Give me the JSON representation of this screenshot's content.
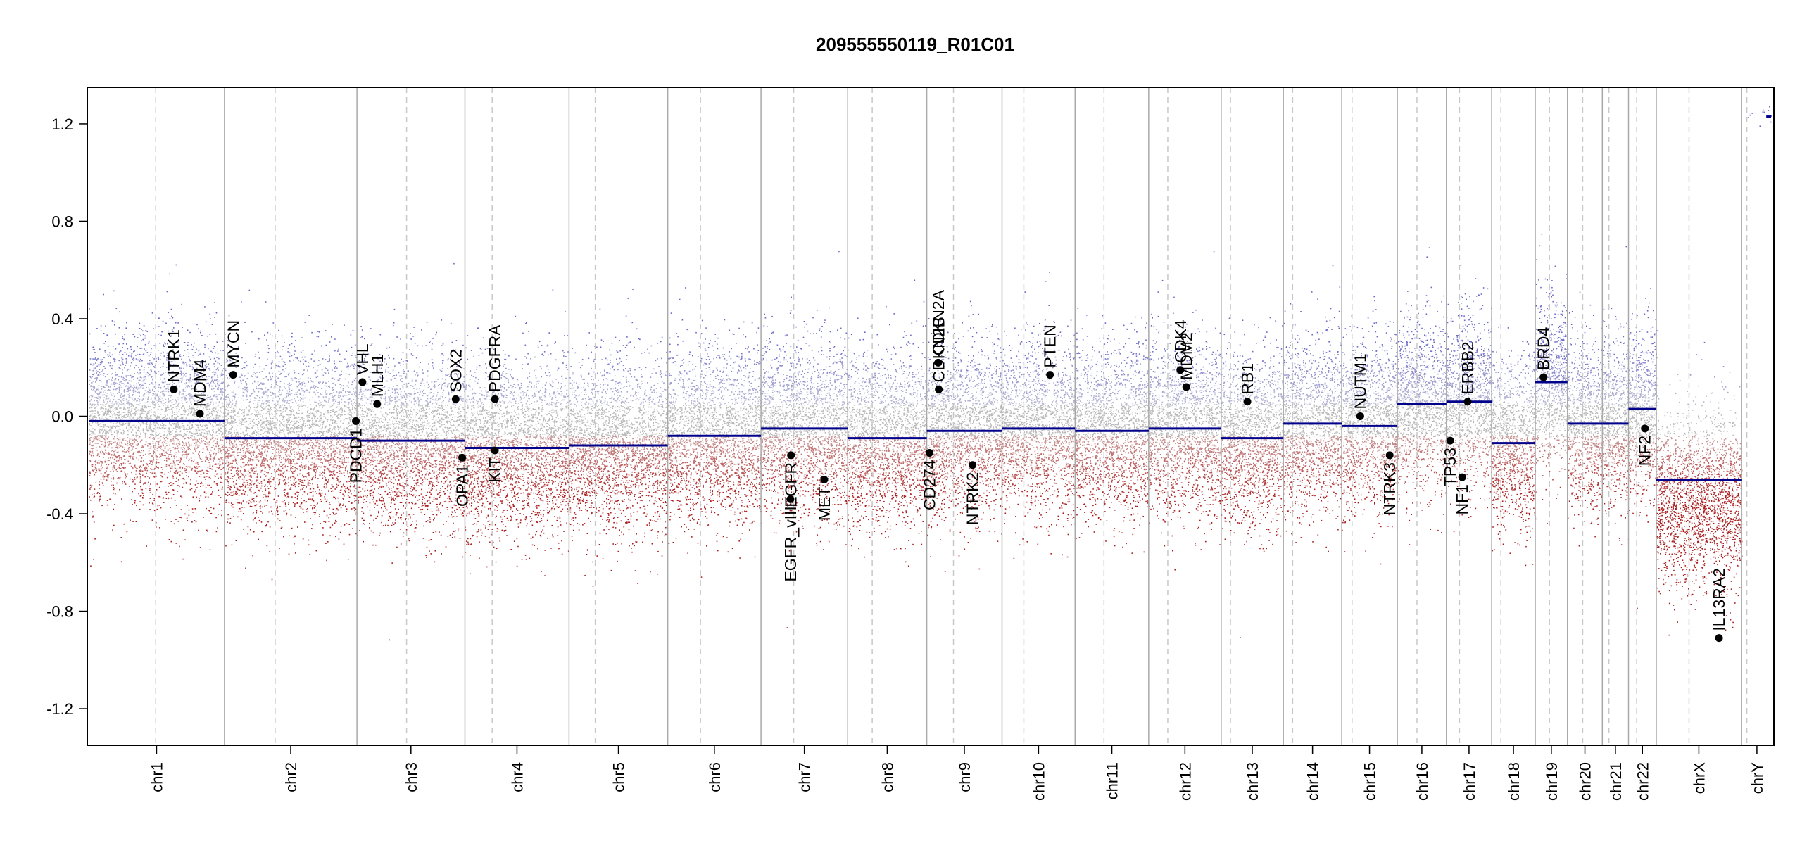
{
  "chart_data": {
    "type": "scatter",
    "title": "209555550119_R01C01",
    "xlabel": "",
    "ylabel": "",
    "ylim": [
      -1.35,
      1.35
    ],
    "y_ticks": [
      "-1.2",
      "-0.8",
      "-0.4",
      "0.0",
      "0.4",
      "0.8",
      "1.2"
    ],
    "y_tick_values": [
      -1.2,
      -0.8,
      -0.4,
      0.0,
      0.4,
      0.8,
      1.2
    ],
    "grid": false,
    "colors": {
      "segment": "#00008b",
      "gain_points": "#6a6ac8",
      "loss_points": "#b22222",
      "neutral_points": "#b8b8b8",
      "chrom_boundary": "#a9a9a9",
      "centromere": "#c8c8c8"
    },
    "chromosomes": [
      {
        "name": "chr1",
        "length": 249,
        "centromere": 123,
        "segment": -0.02
      },
      {
        "name": "chr2",
        "length": 243,
        "centromere": 93,
        "segment": -0.09
      },
      {
        "name": "chr3",
        "length": 198,
        "centromere": 91,
        "segment": -0.1
      },
      {
        "name": "chr4",
        "length": 191,
        "centromere": 50,
        "segment": -0.13
      },
      {
        "name": "chr5",
        "length": 181,
        "centromere": 48,
        "segment": -0.12
      },
      {
        "name": "chr6",
        "length": 171,
        "centromere": 60,
        "segment": -0.08
      },
      {
        "name": "chr7",
        "length": 159,
        "centromere": 60,
        "segment": -0.05
      },
      {
        "name": "chr8",
        "length": 145,
        "centromere": 45,
        "segment": -0.09
      },
      {
        "name": "chr9",
        "length": 138,
        "centromere": 49,
        "segment": -0.06
      },
      {
        "name": "chr10",
        "length": 134,
        "centromere": 40,
        "segment": -0.05
      },
      {
        "name": "chr11",
        "length": 135,
        "centromere": 53,
        "segment": -0.06
      },
      {
        "name": "chr12",
        "length": 133,
        "centromere": 35,
        "segment": -0.05
      },
      {
        "name": "chr13",
        "length": 114,
        "centromere": 17,
        "segment": -0.09
      },
      {
        "name": "chr14",
        "length": 107,
        "centromere": 17,
        "segment": -0.03
      },
      {
        "name": "chr15",
        "length": 102,
        "centromere": 19,
        "segment": -0.04
      },
      {
        "name": "chr16",
        "length": 90,
        "centromere": 36,
        "segment": 0.05
      },
      {
        "name": "chr17",
        "length": 83,
        "centromere": 24,
        "segment": 0.06
      },
      {
        "name": "chr18",
        "length": 80,
        "centromere": 17,
        "segment": -0.11
      },
      {
        "name": "chr19",
        "length": 59,
        "centromere": 26,
        "segment": 0.14
      },
      {
        "name": "chr20",
        "length": 64,
        "centromere": 28,
        "segment": -0.03
      },
      {
        "name": "chr21",
        "length": 48,
        "centromere": 12,
        "segment": -0.03
      },
      {
        "name": "chr22",
        "length": 51,
        "centromere": 15,
        "segment": 0.03
      },
      {
        "name": "chrX",
        "length": 156,
        "centromere": 60,
        "segment": -0.26
      },
      {
        "name": "chrY",
        "length": 57,
        "centromere": 10,
        "segment": 1.23
      }
    ],
    "genes": [
      {
        "name": "NTRK1",
        "chrom": "chr1",
        "pos": 156,
        "value": 0.11,
        "side": "above"
      },
      {
        "name": "MDM4",
        "chrom": "chr1",
        "pos": 204,
        "value": 0.01,
        "side": "above"
      },
      {
        "name": "MYCN",
        "chrom": "chr2",
        "pos": 16,
        "value": 0.17,
        "side": "above"
      },
      {
        "name": "PDCD1",
        "chrom": "chr2",
        "pos": 241,
        "value": -0.02,
        "side": "below"
      },
      {
        "name": "VHL",
        "chrom": "chr3",
        "pos": 10,
        "value": 0.14,
        "side": "above"
      },
      {
        "name": "MLH1",
        "chrom": "chr3",
        "pos": 37,
        "value": 0.05,
        "side": "above"
      },
      {
        "name": "SOX2",
        "chrom": "chr3",
        "pos": 181,
        "value": 0.07,
        "side": "above"
      },
      {
        "name": "OPA1",
        "chrom": "chr3",
        "pos": 193,
        "value": -0.17,
        "side": "below"
      },
      {
        "name": "PDGFRA",
        "chrom": "chr4",
        "pos": 55,
        "value": 0.07,
        "side": "above"
      },
      {
        "name": "KIT",
        "chrom": "chr4",
        "pos": 55,
        "value": -0.14,
        "side": "below"
      },
      {
        "name": "EGFR",
        "chrom": "chr7",
        "pos": 55,
        "value": -0.16,
        "side": "below"
      },
      {
        "name": "EGFR_vIII",
        "chrom": "chr7",
        "pos": 54,
        "value": -0.34,
        "side": "below"
      },
      {
        "name": "MET",
        "chrom": "chr7",
        "pos": 116,
        "value": -0.26,
        "side": "below"
      },
      {
        "name": "CDKN2A",
        "chrom": "chr9",
        "pos": 21,
        "value": 0.22,
        "side": "above"
      },
      {
        "name": "CDKN2B",
        "chrom": "chr9",
        "pos": 22,
        "value": 0.11,
        "side": "above"
      },
      {
        "name": "CD274",
        "chrom": "chr9",
        "pos": 5,
        "value": -0.15,
        "side": "below"
      },
      {
        "name": "NTRK2",
        "chrom": "chr9",
        "pos": 84,
        "value": -0.2,
        "side": "below"
      },
      {
        "name": "PTEN",
        "chrom": "chr10",
        "pos": 88,
        "value": 0.17,
        "side": "above"
      },
      {
        "name": "CDK4",
        "chrom": "chr12",
        "pos": 58,
        "value": 0.19,
        "side": "above"
      },
      {
        "name": "MDM2",
        "chrom": "chr12",
        "pos": 69,
        "value": 0.12,
        "side": "above"
      },
      {
        "name": "RB1",
        "chrom": "chr13",
        "pos": 48,
        "value": 0.06,
        "side": "above"
      },
      {
        "name": "NUTM1",
        "chrom": "chr15",
        "pos": 34,
        "value": 0.0,
        "side": "above"
      },
      {
        "name": "NTRK3",
        "chrom": "chr15",
        "pos": 88,
        "value": -0.16,
        "side": "below"
      },
      {
        "name": "TP53",
        "chrom": "chr17",
        "pos": 7,
        "value": -0.1,
        "side": "below"
      },
      {
        "name": "NF1",
        "chrom": "chr17",
        "pos": 29,
        "value": -0.25,
        "side": "below"
      },
      {
        "name": "ERBB2",
        "chrom": "chr17",
        "pos": 39,
        "value": 0.06,
        "side": "above"
      },
      {
        "name": "BRD4",
        "chrom": "chr19",
        "pos": 15,
        "value": 0.16,
        "side": "above"
      },
      {
        "name": "NF2",
        "chrom": "chr22",
        "pos": 30,
        "value": -0.05,
        "side": "below"
      },
      {
        "name": "IL13RA2",
        "chrom": "chrX",
        "pos": 115,
        "value": -0.91,
        "side": "above"
      }
    ]
  }
}
